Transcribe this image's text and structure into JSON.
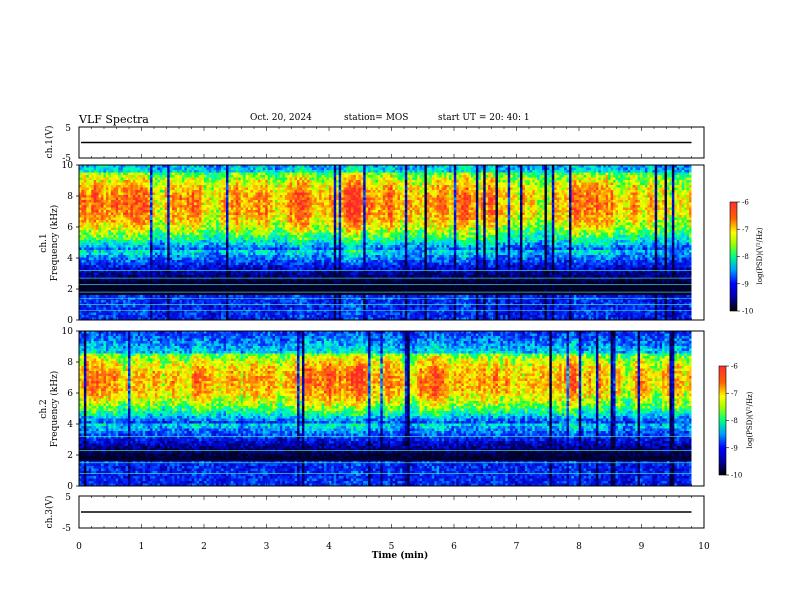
{
  "header": {
    "title": "VLF Spectra",
    "date": "Oct. 20, 2024",
    "station": "station= MOS",
    "start": "start  UT =  20: 40: 1"
  },
  "colors": {
    "ramp": [
      "#000040",
      "#0000ff",
      "#0090ff",
      "#00ffff",
      "#00ff60",
      "#c0ff00",
      "#ffff00",
      "#ff8000",
      "#ff2020"
    ],
    "trace": "#000000"
  },
  "chart_data": [
    {
      "type": "line",
      "ylabel": "ch.1(V)",
      "ylim": [
        -5,
        5
      ],
      "yticks": [
        "5",
        "-5"
      ],
      "level": 0,
      "description_free": true
    },
    {
      "type": "heatmap",
      "ylabel_top": "ch.1",
      "ylabel": "Frequency (kHz)",
      "ylim": [
        0,
        10
      ],
      "yticks": [
        "0",
        "2",
        "4",
        "6",
        "8",
        "10"
      ],
      "band_khz": [
        4.5,
        9.5
      ],
      "peak_khz": 7.5,
      "lines_khz": [
        0.6,
        1.0,
        1.4,
        1.8,
        2.3,
        2.7,
        3.2
      ],
      "colorbar": {
        "label": "log(PSD)(V²/Hz)",
        "ticks": [
          "-6",
          "-7",
          "-8",
          "-9",
          "-10"
        ],
        "range": [
          -10,
          -6
        ]
      }
    },
    {
      "type": "heatmap",
      "ylabel_top": "ch.2",
      "ylabel": "Frequency (kHz)",
      "ylim": [
        0,
        10
      ],
      "yticks": [
        "0",
        "2",
        "4",
        "6",
        "8",
        "10"
      ],
      "band_khz": [
        4.0,
        8.5
      ],
      "peak_khz": 6.8,
      "lines_khz": [
        0.8,
        1.5,
        2.3,
        3.2
      ],
      "colorbar": {
        "label": "log(PSD)(V²/Hz)",
        "ticks": [
          "-6",
          "-7",
          "-8",
          "-9",
          "-10"
        ],
        "range": [
          -10,
          -6
        ]
      }
    },
    {
      "type": "line",
      "ylabel": "ch.3(V)",
      "ylim": [
        -5,
        5
      ],
      "yticks": [
        "5",
        "-5"
      ],
      "level": 0
    }
  ],
  "xaxis": {
    "label": "Time (min)",
    "range": [
      0,
      10
    ],
    "data_end": 9.8,
    "ticks": [
      "0",
      "1",
      "2",
      "3",
      "4",
      "5",
      "6",
      "7",
      "8",
      "9",
      "10"
    ]
  }
}
